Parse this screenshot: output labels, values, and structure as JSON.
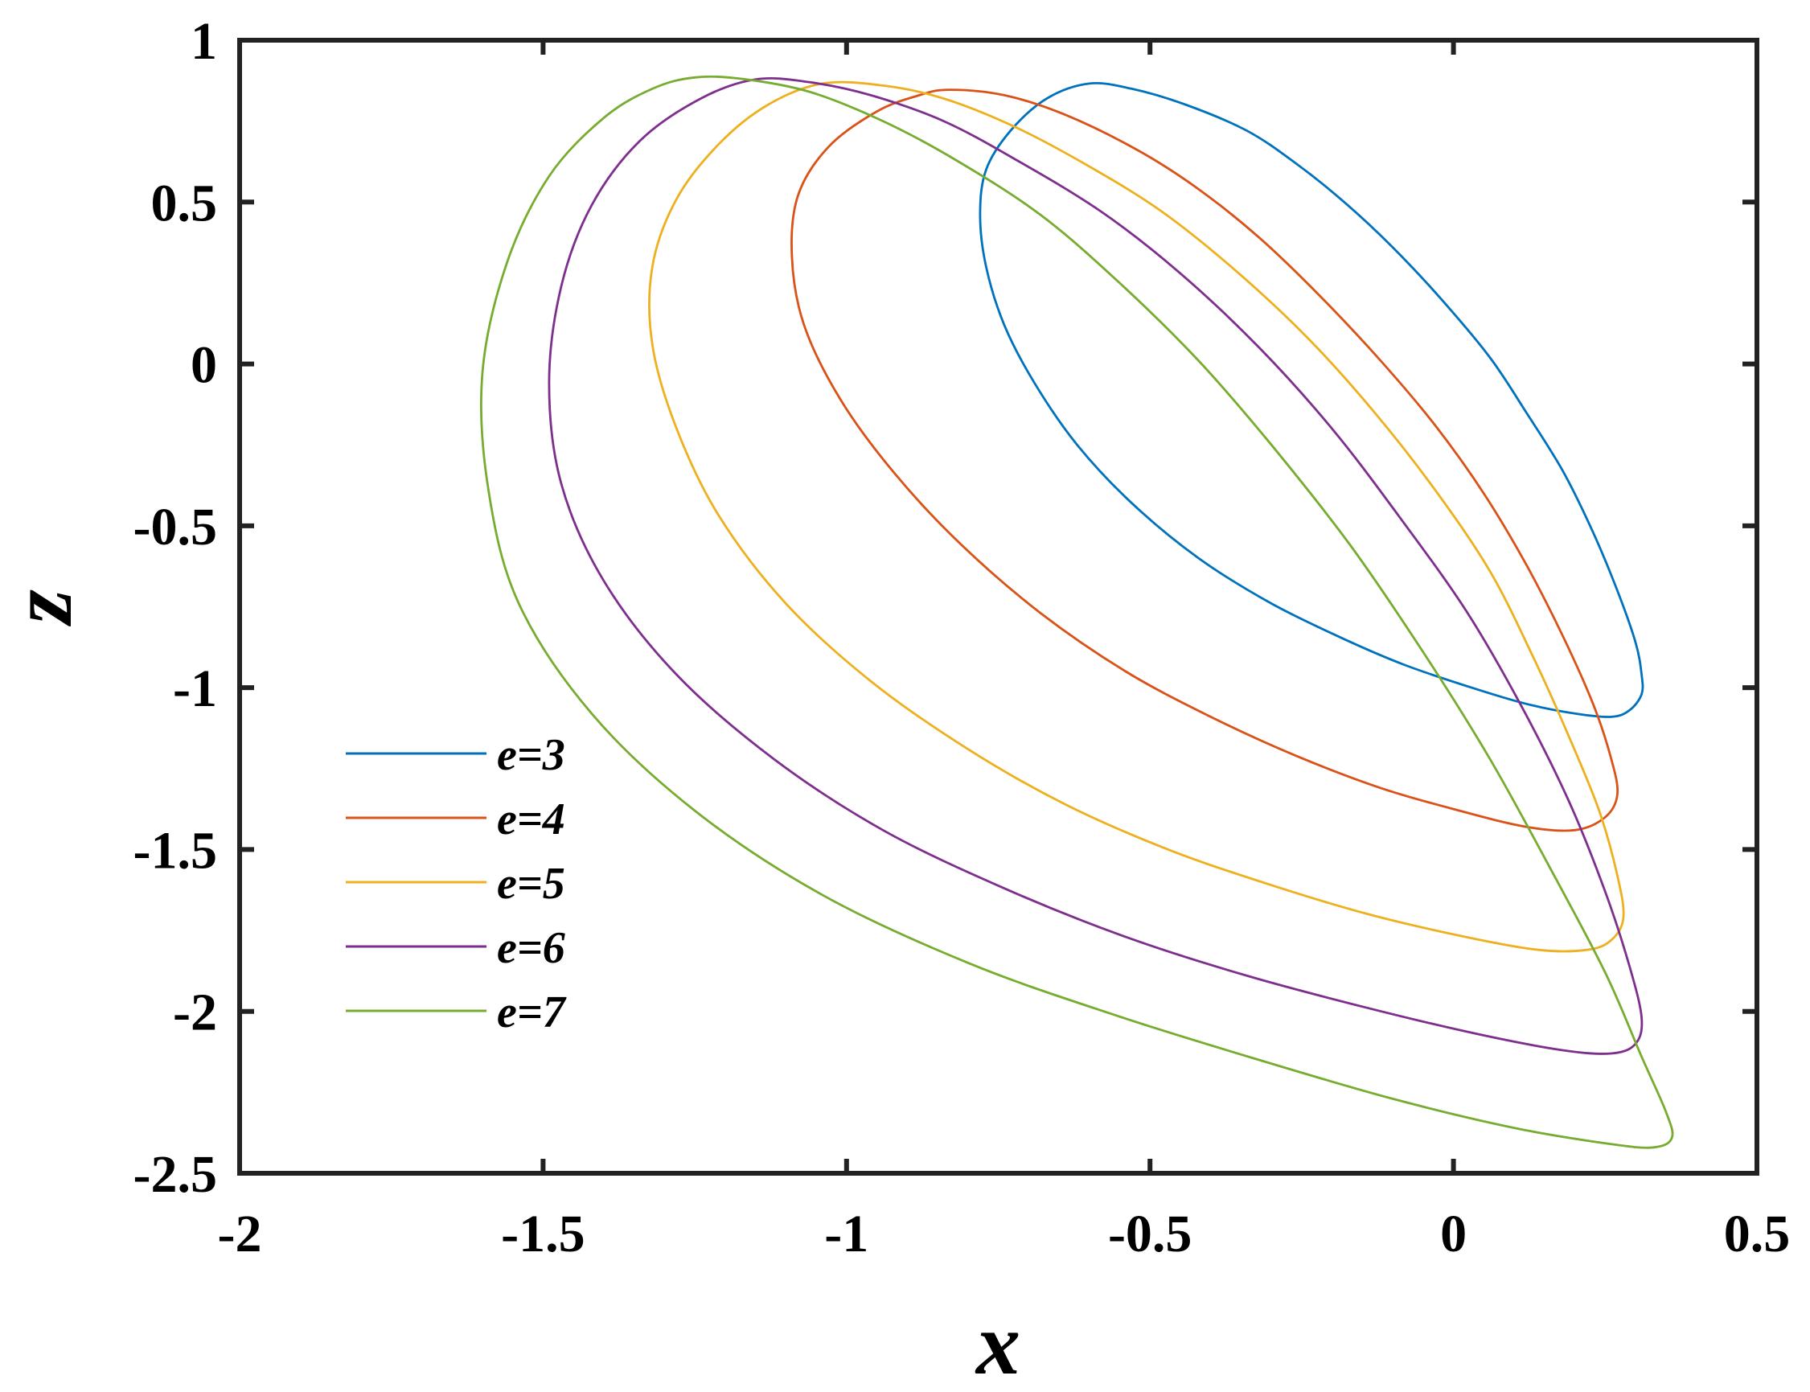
{
  "chart_data": {
    "type": "line",
    "title": "",
    "xlabel": "x",
    "ylabel": "z",
    "xlim": [
      -2,
      0.5
    ],
    "ylim": [
      -2.5,
      1
    ],
    "xticks": [
      -2,
      -1.5,
      -1,
      -0.5,
      0,
      0.5
    ],
    "yticks": [
      1,
      0.5,
      0,
      -0.5,
      -1,
      -1.5,
      -2,
      -2.5
    ],
    "xtick_labels": [
      "-2",
      "-1.5",
      "-1",
      "-0.5",
      "0",
      "0.5"
    ],
    "ytick_labels": [
      "1",
      "0.5",
      "0",
      "-0.5",
      "-1",
      "-1.5",
      "-2",
      "-2.5"
    ],
    "grid": false,
    "legend_position": "bottom-left",
    "series": [
      {
        "name": "e=3",
        "color": "#0072BD",
        "points": [
          [
            -0.6,
            0.866
          ],
          [
            -0.53,
            0.85
          ],
          [
            -0.44,
            0.8
          ],
          [
            -0.34,
            0.72
          ],
          [
            -0.26,
            0.62
          ],
          [
            -0.18,
            0.5
          ],
          [
            -0.1,
            0.36
          ],
          [
            -0.02,
            0.2
          ],
          [
            0.06,
            0.02
          ],
          [
            0.12,
            -0.15
          ],
          [
            0.18,
            -0.33
          ],
          [
            0.23,
            -0.52
          ],
          [
            0.27,
            -0.7
          ],
          [
            0.3,
            -0.86
          ],
          [
            0.31,
            -0.96
          ],
          [
            0.31,
            -1.02
          ],
          [
            0.29,
            -1.07
          ],
          [
            0.26,
            -1.09
          ],
          [
            0.2,
            -1.08
          ],
          [
            0.12,
            -1.05
          ],
          [
            0.03,
            -1.0
          ],
          [
            -0.08,
            -0.93
          ],
          [
            -0.18,
            -0.85
          ],
          [
            -0.3,
            -0.74
          ],
          [
            -0.42,
            -0.6
          ],
          [
            -0.53,
            -0.43
          ],
          [
            -0.62,
            -0.25
          ],
          [
            -0.69,
            -0.06
          ],
          [
            -0.74,
            0.12
          ],
          [
            -0.77,
            0.3
          ],
          [
            -0.78,
            0.46
          ],
          [
            -0.77,
            0.6
          ],
          [
            -0.73,
            0.72
          ],
          [
            -0.67,
            0.82
          ],
          [
            -0.6,
            0.866
          ]
        ]
      },
      {
        "name": "e=4",
        "color": "#D95319",
        "points": [
          [
            -0.83,
            0.847
          ],
          [
            -0.74,
            0.83
          ],
          [
            -0.64,
            0.77
          ],
          [
            -0.52,
            0.66
          ],
          [
            -0.42,
            0.54
          ],
          [
            -0.32,
            0.39
          ],
          [
            -0.22,
            0.21
          ],
          [
            -0.12,
            0.01
          ],
          [
            -0.03,
            -0.19
          ],
          [
            0.05,
            -0.4
          ],
          [
            0.12,
            -0.62
          ],
          [
            0.18,
            -0.84
          ],
          [
            0.23,
            -1.05
          ],
          [
            0.26,
            -1.22
          ],
          [
            0.27,
            -1.33
          ],
          [
            0.25,
            -1.4
          ],
          [
            0.2,
            -1.44
          ],
          [
            0.12,
            -1.43
          ],
          [
            0.01,
            -1.38
          ],
          [
            -0.12,
            -1.31
          ],
          [
            -0.26,
            -1.21
          ],
          [
            -0.4,
            -1.09
          ],
          [
            -0.54,
            -0.95
          ],
          [
            -0.68,
            -0.77
          ],
          [
            -0.81,
            -0.56
          ],
          [
            -0.92,
            -0.34
          ],
          [
            -1.01,
            -0.11
          ],
          [
            -1.07,
            0.12
          ],
          [
            -1.09,
            0.33
          ],
          [
            -1.08,
            0.52
          ],
          [
            -1.03,
            0.67
          ],
          [
            -0.95,
            0.78
          ],
          [
            -0.88,
            0.83
          ],
          [
            -0.83,
            0.847
          ]
        ]
      },
      {
        "name": "e=5",
        "color": "#EDB120",
        "points": [
          [
            -1.04,
            0.866
          ],
          [
            -0.94,
            0.86
          ],
          [
            -0.84,
            0.82
          ],
          [
            -0.72,
            0.73
          ],
          [
            -0.6,
            0.61
          ],
          [
            -0.48,
            0.47
          ],
          [
            -0.36,
            0.29
          ],
          [
            -0.24,
            0.08
          ],
          [
            -0.13,
            -0.15
          ],
          [
            -0.03,
            -0.39
          ],
          [
            0.06,
            -0.64
          ],
          [
            0.13,
            -0.9
          ],
          [
            0.19,
            -1.15
          ],
          [
            0.24,
            -1.38
          ],
          [
            0.27,
            -1.58
          ],
          [
            0.28,
            -1.71
          ],
          [
            0.26,
            -1.78
          ],
          [
            0.22,
            -1.81
          ],
          [
            0.14,
            -1.81
          ],
          [
            0.02,
            -1.77
          ],
          [
            -0.14,
            -1.7
          ],
          [
            -0.3,
            -1.61
          ],
          [
            -0.47,
            -1.5
          ],
          [
            -0.64,
            -1.36
          ],
          [
            -0.8,
            -1.19
          ],
          [
            -0.96,
            -0.98
          ],
          [
            -1.1,
            -0.74
          ],
          [
            -1.21,
            -0.47
          ],
          [
            -1.28,
            -0.2
          ],
          [
            -1.32,
            0.06
          ],
          [
            -1.32,
            0.3
          ],
          [
            -1.28,
            0.51
          ],
          [
            -1.21,
            0.68
          ],
          [
            -1.13,
            0.8
          ],
          [
            -1.04,
            0.866
          ]
        ]
      },
      {
        "name": "e=6",
        "color": "#7E2F8E",
        "points": [
          [
            -1.15,
            0.879
          ],
          [
            -1.06,
            0.87
          ],
          [
            -0.96,
            0.83
          ],
          [
            -0.84,
            0.75
          ],
          [
            -0.72,
            0.63
          ],
          [
            -0.58,
            0.47
          ],
          [
            -0.45,
            0.28
          ],
          [
            -0.32,
            0.05
          ],
          [
            -0.2,
            -0.2
          ],
          [
            -0.09,
            -0.47
          ],
          [
            0.02,
            -0.76
          ],
          [
            0.11,
            -1.05
          ],
          [
            0.19,
            -1.35
          ],
          [
            0.25,
            -1.63
          ],
          [
            0.29,
            -1.86
          ],
          [
            0.31,
            -2.02
          ],
          [
            0.3,
            -2.1
          ],
          [
            0.26,
            -2.13
          ],
          [
            0.18,
            -2.12
          ],
          [
            0.04,
            -2.07
          ],
          [
            -0.14,
            -1.99
          ],
          [
            -0.34,
            -1.89
          ],
          [
            -0.54,
            -1.77
          ],
          [
            -0.74,
            -1.62
          ],
          [
            -0.94,
            -1.44
          ],
          [
            -1.12,
            -1.22
          ],
          [
            -1.28,
            -0.96
          ],
          [
            -1.4,
            -0.67
          ],
          [
            -1.47,
            -0.37
          ],
          [
            -1.49,
            -0.06
          ],
          [
            -1.47,
            0.24
          ],
          [
            -1.42,
            0.49
          ],
          [
            -1.34,
            0.69
          ],
          [
            -1.24,
            0.82
          ],
          [
            -1.15,
            0.879
          ]
        ]
      },
      {
        "name": "e=7",
        "color": "#77AC30",
        "points": [
          [
            -1.25,
            0.885
          ],
          [
            -1.17,
            0.88
          ],
          [
            -1.06,
            0.84
          ],
          [
            -0.94,
            0.75
          ],
          [
            -0.82,
            0.63
          ],
          [
            -0.68,
            0.46
          ],
          [
            -0.55,
            0.25
          ],
          [
            -0.42,
            0.01
          ],
          [
            -0.3,
            -0.25
          ],
          [
            -0.17,
            -0.56
          ],
          [
            -0.05,
            -0.89
          ],
          [
            0.06,
            -1.22
          ],
          [
            0.16,
            -1.56
          ],
          [
            0.25,
            -1.88
          ],
          [
            0.31,
            -2.14
          ],
          [
            0.35,
            -2.31
          ],
          [
            0.36,
            -2.39
          ],
          [
            0.33,
            -2.42
          ],
          [
            0.26,
            -2.41
          ],
          [
            0.1,
            -2.36
          ],
          [
            -0.1,
            -2.27
          ],
          [
            -0.32,
            -2.15
          ],
          [
            -0.56,
            -2.01
          ],
          [
            -0.8,
            -1.85
          ],
          [
            -1.04,
            -1.64
          ],
          [
            -1.25,
            -1.38
          ],
          [
            -1.42,
            -1.08
          ],
          [
            -1.54,
            -0.74
          ],
          [
            -1.59,
            -0.39
          ],
          [
            -1.6,
            -0.03
          ],
          [
            -1.56,
            0.31
          ],
          [
            -1.49,
            0.58
          ],
          [
            -1.4,
            0.76
          ],
          [
            -1.32,
            0.85
          ],
          [
            -1.25,
            0.885
          ]
        ]
      }
    ]
  }
}
